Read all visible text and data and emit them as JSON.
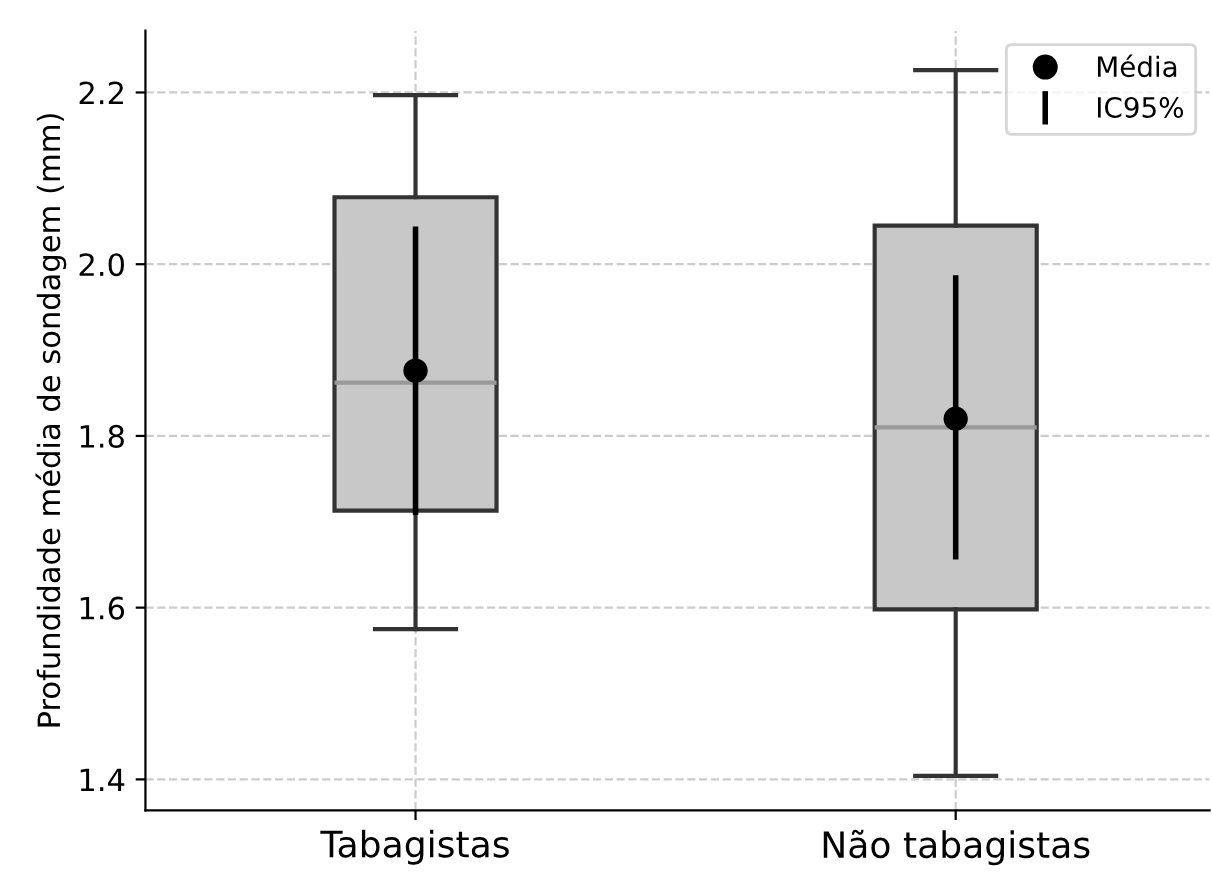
{
  "chart_data": {
    "type": "box",
    "ylabel": "Profundidade média de sondagem (mm)",
    "categories": [
      "Tabagistas",
      "Não tabagistas"
    ],
    "boxes": [
      {
        "low": 1.575,
        "q1": 1.713,
        "median": 1.862,
        "q3": 2.078,
        "high": 2.197
      },
      {
        "low": 1.404,
        "q1": 1.598,
        "median": 1.81,
        "q3": 2.045,
        "high": 2.226
      }
    ],
    "color": "#c8c8c8",
    "series": [
      {
        "name": "Média",
        "type": "scatter",
        "color": "#000000",
        "marker": "circle",
        "values": [
          1.876,
          1.82
        ],
        "errors": [
          [
            1.708,
            2.044
          ],
          [
            1.656,
            1.987
          ]
        ]
      },
      {
        "name": "IC95%",
        "type": "line",
        "color": "#000000",
        "values": [
          null,
          null
        ]
      }
    ],
    "ylim": [
      1.364,
      2.272
    ],
    "yticks": [
      1.4,
      1.6,
      1.8,
      {
        "value": 2,
        "label": "2.0"
      },
      2.2
    ],
    "grid": true,
    "legend": "top right"
  }
}
